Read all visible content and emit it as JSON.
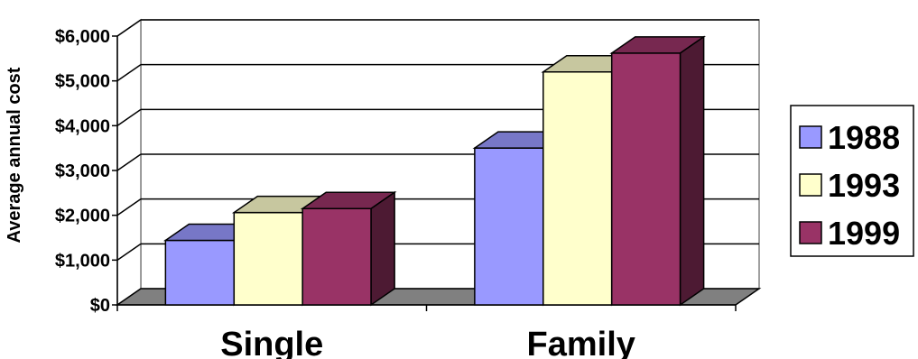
{
  "chart_data": {
    "type": "bar",
    "title": "",
    "xlabel": "",
    "ylabel": "Average annual cost",
    "categories": [
      "Single",
      "Family"
    ],
    "series": [
      {
        "name": "1988",
        "values": [
          1440,
          3500
        ],
        "color": "#9999ff"
      },
      {
        "name": "1993",
        "values": [
          2060,
          5200
        ],
        "color": "#ffffcc"
      },
      {
        "name": "1999",
        "values": [
          2150,
          5620
        ],
        "color": "#993366"
      }
    ],
    "ylim": [
      0,
      6000
    ],
    "yticks": [
      "$0",
      "$1,000",
      "$2,000",
      "$3,000",
      "$4,000",
      "$5,000",
      "$6,000"
    ],
    "grid": true,
    "legend_position": "right",
    "style": "3d-clustered-column"
  }
}
